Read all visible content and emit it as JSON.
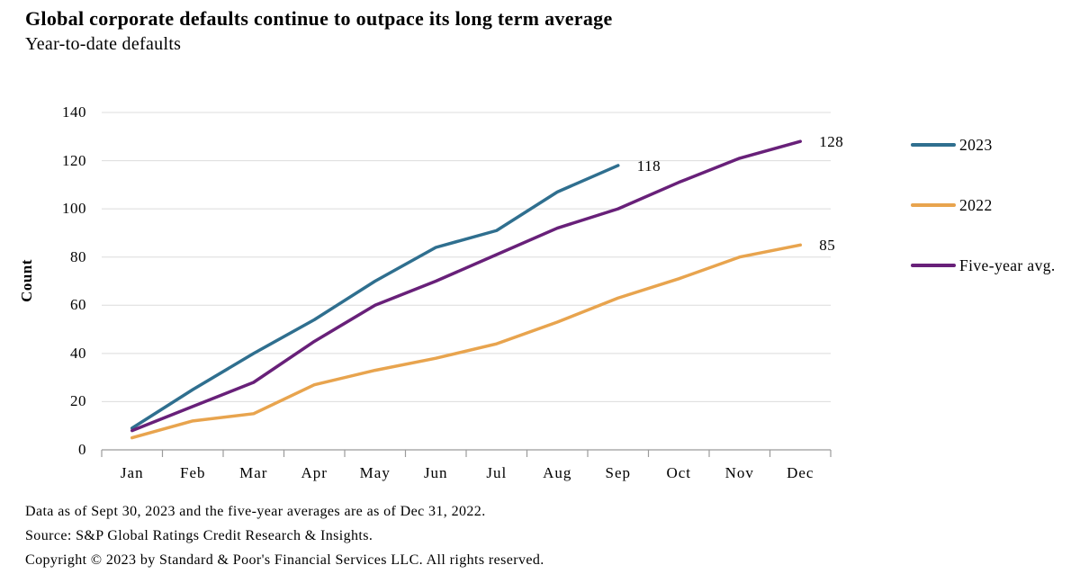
{
  "title": "Global corporate defaults continue to outpace its long term average",
  "subtitle": "Year-to-date defaults",
  "chart_data": {
    "type": "line",
    "categories": [
      "Jan",
      "Feb",
      "Mar",
      "Apr",
      "May",
      "Jun",
      "Jul",
      "Aug",
      "Sep",
      "Oct",
      "Nov",
      "Dec"
    ],
    "xlabel": "",
    "ylabel": "Count",
    "ylim": [
      0,
      140
    ],
    "yticks": [
      0,
      20,
      40,
      60,
      80,
      100,
      120,
      140
    ],
    "grid": "horizontal",
    "legend_position": "right",
    "series": [
      {
        "name": "2023",
        "color": "#2f6f8f",
        "values": [
          9,
          25,
          40,
          54,
          70,
          84,
          91,
          107,
          118
        ],
        "end_label": "118"
      },
      {
        "name": "2022",
        "color": "#e8a44e",
        "values": [
          5,
          12,
          15,
          27,
          33,
          38,
          44,
          53,
          63,
          71,
          80,
          85
        ],
        "end_label": "85"
      },
      {
        "name": "Five-year avg.",
        "color": "#682079",
        "values": [
          8,
          18,
          28,
          45,
          60,
          70,
          81,
          92,
          100,
          111,
          121,
          128
        ],
        "end_label": "128"
      }
    ]
  },
  "footnotes": {
    "data_as_of": "Data as of Sept 30, 2023 and the five-year averages are as of Dec 31, 2022.",
    "source": "Source: S&P Global Ratings Credit Research & Insights.",
    "copyright": "Copyright © 2023 by Standard & Poor's Financial Services LLC. All rights reserved."
  }
}
